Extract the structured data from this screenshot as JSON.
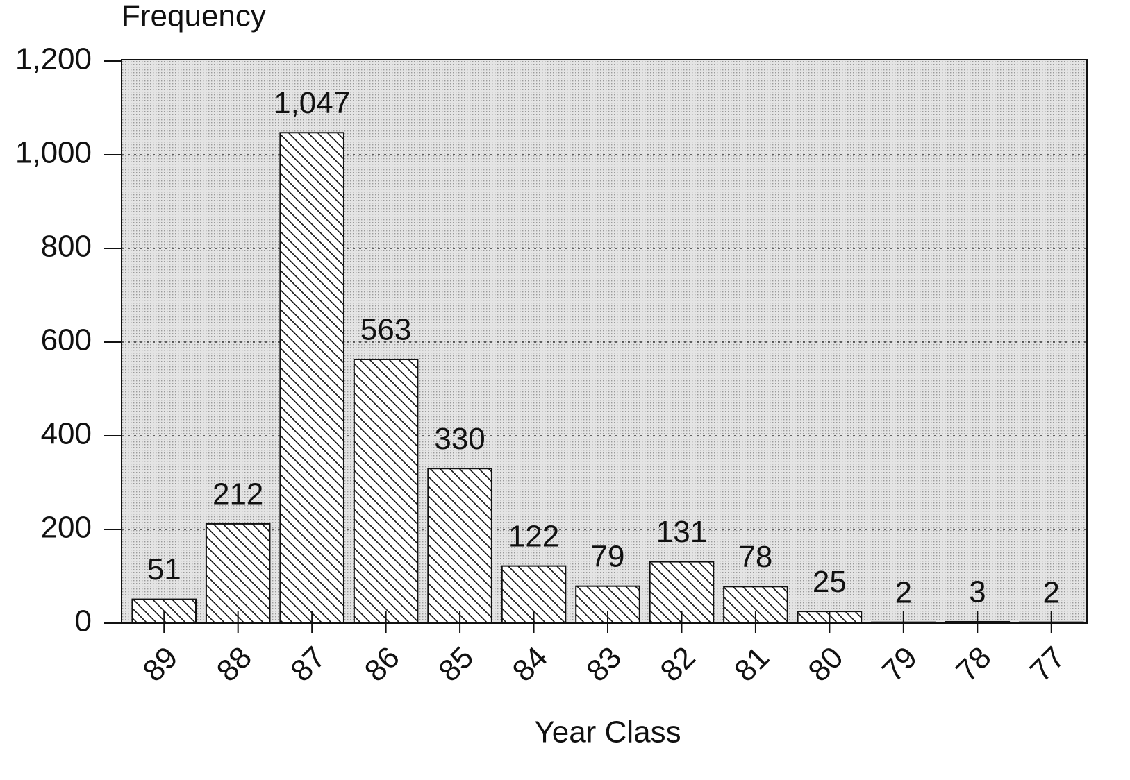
{
  "chart_data": {
    "type": "bar",
    "y_label": "Frequency",
    "x_label": "Year Class",
    "categories": [
      "89",
      "88",
      "87",
      "86",
      "85",
      "84",
      "83",
      "82",
      "81",
      "80",
      "79",
      "78",
      "77"
    ],
    "values": [
      51,
      212,
      1047,
      563,
      330,
      122,
      79,
      131,
      78,
      25,
      2,
      3,
      2
    ],
    "value_labels": [
      "51",
      "212",
      "1,047",
      "563",
      "330",
      "122",
      "79",
      "131",
      "78",
      "25",
      "2",
      "3",
      "2"
    ],
    "color": "#ffffff",
    "ylim": [
      0,
      1200
    ],
    "yticks": [
      0,
      200,
      400,
      600,
      800,
      {
        "value": 1000,
        "label": "1,000"
      },
      {
        "value": 1200,
        "label": "1,200"
      }
    ],
    "grid": true
  }
}
